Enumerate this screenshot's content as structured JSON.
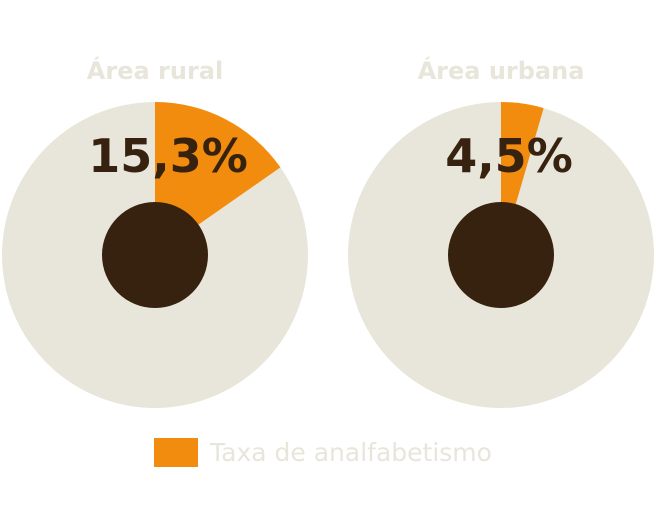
{
  "chart_data": [
    {
      "type": "pie",
      "title": "Área rural",
      "values": [
        15.3,
        84.7
      ],
      "value_label": "15,3%",
      "series": [
        {
          "name": "Taxa de analfabetismo",
          "value": 15.3
        }
      ]
    },
    {
      "type": "pie",
      "title": "Área urbana",
      "values": [
        4.5,
        95.5
      ],
      "value_label": "4,5%",
      "series": [
        {
          "name": "Taxa de analfabetismo",
          "value": 4.5
        }
      ]
    }
  ],
  "legend": {
    "label": "Taxa de analfabetismo",
    "placement": "bottom"
  },
  "colors": {
    "highlight": "#f28c0f",
    "remainder": "#e8e6db",
    "center": "#36220e",
    "value_text": "#36220e",
    "title_text": "#e8e6db",
    "legend_text": "#e8e6db"
  }
}
